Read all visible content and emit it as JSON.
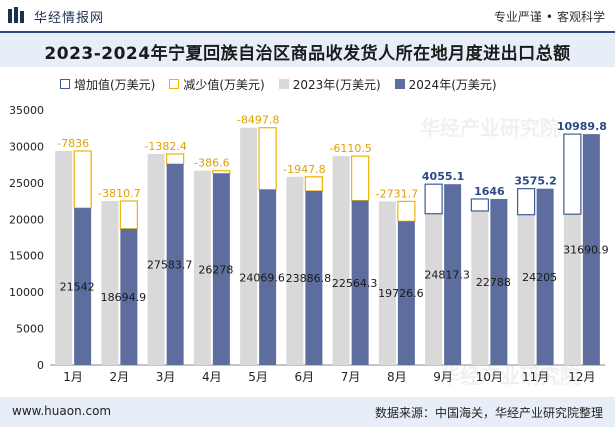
{
  "header": {
    "brand": "华经情报网",
    "tag1": "专业严谨",
    "tag2": "客观科学",
    "title": "2023-2024年宁夏回族自治区商品收发货人所在地月度进出口总额"
  },
  "watermarks": [
    "华经产业研究院",
    "www.huaon.com"
  ],
  "footer": {
    "url": "www.huaon.com",
    "source": "数据来源：中国海关，华经产业研究院整理"
  },
  "colors": {
    "increase": "#3d5f95",
    "decrease": "#f0b400",
    "y2023": "#d9d9d9",
    "y2024": "#5d6e9e",
    "increase_label": "#2c4a84",
    "decrease_label": "#e0a000"
  },
  "chart_data": {
    "type": "bar",
    "categories": [
      "1月",
      "2月",
      "3月",
      "4月",
      "5月",
      "6月",
      "7月",
      "8月",
      "9月",
      "10月",
      "11月",
      "12月"
    ],
    "series": [
      {
        "name": "2023年(万美元)",
        "values": [
          29378,
          22505.7,
          28966.1,
          26664.6,
          32567.4,
          25834.6,
          28674.8,
          22458.4,
          20762.2,
          21142,
          20629.8,
          20701.1
        ]
      },
      {
        "name": "2024年(万美元)",
        "values": [
          21542,
          18694.9,
          27583.7,
          26278,
          24069.6,
          23886.8,
          22564.3,
          19726.6,
          24817.3,
          22788,
          24205,
          31690.9
        ]
      }
    ],
    "changes": [
      -7836,
      -3810.7,
      -1382.4,
      -386.6,
      -8497.8,
      -1947.8,
      -6110.5,
      -2731.7,
      4055.1,
      1646,
      3575.2,
      10989.8
    ],
    "change_labels": [
      "-7836",
      "-3810.7",
      "-1382.4",
      "-386.6",
      "-8497.8",
      "-1947.8",
      "-6110.5",
      "-2731.7",
      "4055.1",
      "1646",
      "3575.2",
      "10989.8"
    ],
    "value_labels_2024": [
      "21542",
      "18694.9",
      "27583.7",
      "26278",
      "24069.6",
      "23886.8",
      "22564.3",
      "19726.6",
      "24817.3",
      "22788",
      "24205",
      "31690.9"
    ],
    "legend": [
      "增加值(万美元)",
      "减少值(万美元)",
      "2023年(万美元)",
      "2024年(万美元)"
    ],
    "ylim": [
      0,
      35000
    ],
    "yticks": [
      "0",
      "5000",
      "10000",
      "15000",
      "20000",
      "25000",
      "30000",
      "35000"
    ],
    "grid": false,
    "legend_position": "top-left"
  }
}
